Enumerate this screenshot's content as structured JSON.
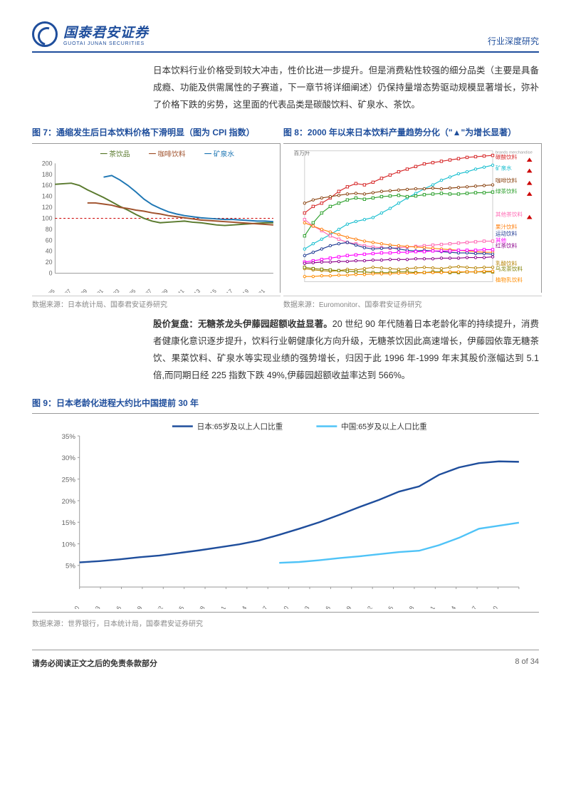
{
  "header": {
    "logo_cn": "国泰君安证券",
    "logo_en": "GUOTAI JUNAN SECURITIES",
    "doc_type": "行业深度研究"
  },
  "para1": "日本饮料行业价格受到较大冲击，性价比进一步提升。但是消费粘性较强的细分品类（主要是具备成瘾、功能及供需属性的子赛道，下一章节将详细阐述）仍保持量增态势驱动规模显著增长，弥补了价格下跌的劣势，这里面的代表品类是碳酸饮料、矿泉水、茶饮。",
  "fig7": {
    "title": "图 7：通缩发生后日本饮料价格下滑明显（图为 CPI 指数）",
    "legend": [
      "茶饮品",
      "咖啡饮料",
      "矿泉水"
    ],
    "colors": [
      "#5a7a2e",
      "#a0522d",
      "#1f77b4"
    ],
    "ylim": [
      0,
      200
    ],
    "ytick_step": 20,
    "years": [
      "1995",
      "1997",
      "1999",
      "2001",
      "2003",
      "2005",
      "2007",
      "2009",
      "2011",
      "2013",
      "2015",
      "2017",
      "2019",
      "2021"
    ],
    "series": {
      "tea": [
        162,
        163,
        164,
        160,
        152,
        145,
        138,
        130,
        122,
        115,
        107,
        100,
        95,
        92,
        93,
        94,
        95,
        93,
        92,
        90,
        88,
        87,
        88,
        89,
        90,
        91,
        92,
        92
      ],
      "coffee": [
        null,
        null,
        null,
        null,
        128,
        128,
        126,
        124,
        120,
        118,
        115,
        113,
        110,
        108,
        105,
        103,
        101,
        99,
        97,
        96,
        95,
        94,
        93,
        92,
        91,
        90,
        89,
        88
      ],
      "water": [
        null,
        null,
        null,
        null,
        null,
        null,
        175,
        178,
        170,
        160,
        148,
        135,
        125,
        118,
        112,
        108,
        105,
        103,
        101,
        100,
        99,
        98,
        98,
        97,
        96,
        95,
        95,
        94
      ]
    },
    "source": "数据来源：日本统计局、国泰君安证券研究"
  },
  "fig8": {
    "title": "图 8：2000 年以来日本饮料产量趋势分化（\"▲\"为增长显著）",
    "ylabel": "百万升",
    "right_labels": [
      {
        "text": "碳酸饮料",
        "color": "#d62728",
        "tri": true
      },
      {
        "text": "矿泉水",
        "color": "#17becf",
        "tri": true
      },
      {
        "text": "咖啡饮料",
        "color": "#8b4513",
        "tri": true
      },
      {
        "text": "绿茶饮料",
        "color": "#2ca02c",
        "tri": true
      },
      {
        "text": "其他茶饮料",
        "color": "#ff69b4",
        "tri": true
      },
      {
        "text": "果汁饮料",
        "color": "#ff7f0e",
        "tri": false
      },
      {
        "text": "运动饮料",
        "color": "#1f3a93",
        "tri": false
      },
      {
        "text": "其他",
        "color": "#ff00ff",
        "tri": false
      },
      {
        "text": "红茶饮料",
        "color": "#8b008b",
        "tri": false
      },
      {
        "text": "乳酸饮料",
        "color": "#b8860b",
        "tri": false
      },
      {
        "text": "乌龙茶饮料",
        "color": "#808000",
        "tri": false
      },
      {
        "text": "植物乳饮料",
        "color": "#ff8c00",
        "tri": false
      }
    ],
    "source": "数据来源：Euromonitor、国泰君安证券研究"
  },
  "para2": {
    "bold": "股价复盘：无糖茶龙头伊藤园超额收益显著。",
    "text": "20 世纪 90 年代随着日本老龄化率的持续提升，消费者健康化意识逐步提升，饮料行业朝健康化方向升级，无糖茶饮因此高速增长，伊藤园依靠无糖茶饮、果菜饮料、矿泉水等实现业绩的强势增长，归因于此 1996 年-1999 年末其股价涨幅达到 5.1 倍,而同期日经 225 指数下跌 49%,伊藤园超额收益率达到 566%。"
  },
  "fig9": {
    "title": "图 9：日本老龄化进程大约比中国提前 30 年",
    "legend": [
      "日本:65岁及以上人口比重",
      "中国:65岁及以上人口比重"
    ],
    "colors": [
      "#1f4e9c",
      "#4fc3f7"
    ],
    "ylim": [
      0,
      35
    ],
    "ytick_step": 5,
    "years": [
      "1960",
      "1963",
      "1966",
      "1969",
      "1972",
      "1975",
      "1978",
      "1981",
      "1984",
      "1987",
      "1990",
      "1993",
      "1996",
      "1999",
      "2002",
      "2005",
      "2008",
      "2011",
      "2014",
      "2017",
      "2020",
      ""
    ],
    "japan": [
      5.7,
      6.0,
      6.4,
      6.9,
      7.3,
      7.9,
      8.5,
      9.2,
      9.9,
      10.8,
      12.1,
      13.5,
      15.0,
      16.7,
      18.5,
      20.2,
      22.1,
      23.3,
      26.0,
      27.7,
      28.7,
      29.1,
      29.0
    ],
    "china": [
      null,
      null,
      null,
      null,
      null,
      null,
      null,
      null,
      null,
      null,
      5.6,
      5.8,
      6.2,
      6.7,
      7.1,
      7.6,
      8.1,
      8.4,
      9.7,
      11.4,
      13.5,
      14.2,
      14.9
    ],
    "source": "数据来源：世界银行，日本统计局，国泰君安证券研究"
  },
  "footer": {
    "left": "请务必阅读正文之后的免责条款部分",
    "right": "8 of 34"
  }
}
